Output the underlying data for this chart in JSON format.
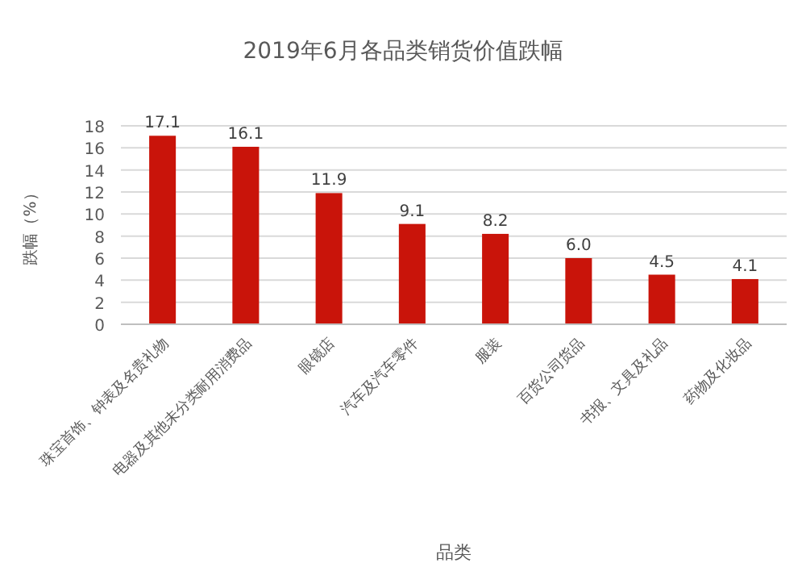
{
  "chart_data": {
    "type": "bar",
    "title": "2019年6月各品类销货价值跌幅",
    "xlabel": "品类",
    "ylabel": "跌幅（%）",
    "categories": [
      "珠宝首饰、钟表及名贵礼物",
      "电器及其他未分类耐用消费品",
      "眼镜店",
      "汽车及汽车零件",
      "服装",
      "百货公司货品",
      "书报、文具及礼品",
      "药物及化妆品"
    ],
    "values": [
      17.1,
      16.1,
      11.9,
      9.1,
      8.2,
      6.0,
      4.5,
      4.1
    ],
    "value_labels": [
      "17.1",
      "16.1",
      "11.9",
      "9.1",
      "8.2",
      "6.0",
      "4.5",
      "4.1"
    ],
    "color": "#c9140a",
    "ylim": [
      0,
      18
    ],
    "yticks": [
      0,
      2,
      4,
      6,
      8,
      10,
      12,
      14,
      16,
      18
    ],
    "grid": "y"
  }
}
